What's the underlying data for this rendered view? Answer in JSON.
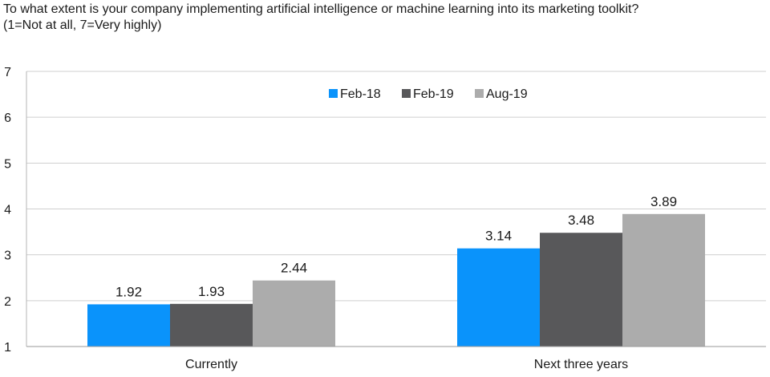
{
  "chart_data": {
    "type": "bar",
    "title": "To what extent is your company implementing artificial intelligence or machine learning into its marketing toolkit?",
    "subtitle": "(1=Not at all, 7=Very highly)",
    "xlabel": "",
    "ylabel": "",
    "categories": [
      "Currently",
      "Next three years"
    ],
    "series": [
      {
        "name": "Feb-18",
        "color": "#0a93fb",
        "values": [
          1.92,
          3.14
        ]
      },
      {
        "name": "Feb-19",
        "color": "#58585a",
        "values": [
          1.93,
          3.48
        ]
      },
      {
        "name": "Aug-19",
        "color": "#acacac",
        "values": [
          2.44,
          3.89
        ]
      }
    ],
    "ylim": [
      1,
      7
    ],
    "yticks": [
      "1",
      "2",
      "3",
      "4",
      "5",
      "6",
      "7"
    ],
    "grid": true,
    "legend": "top-center"
  }
}
